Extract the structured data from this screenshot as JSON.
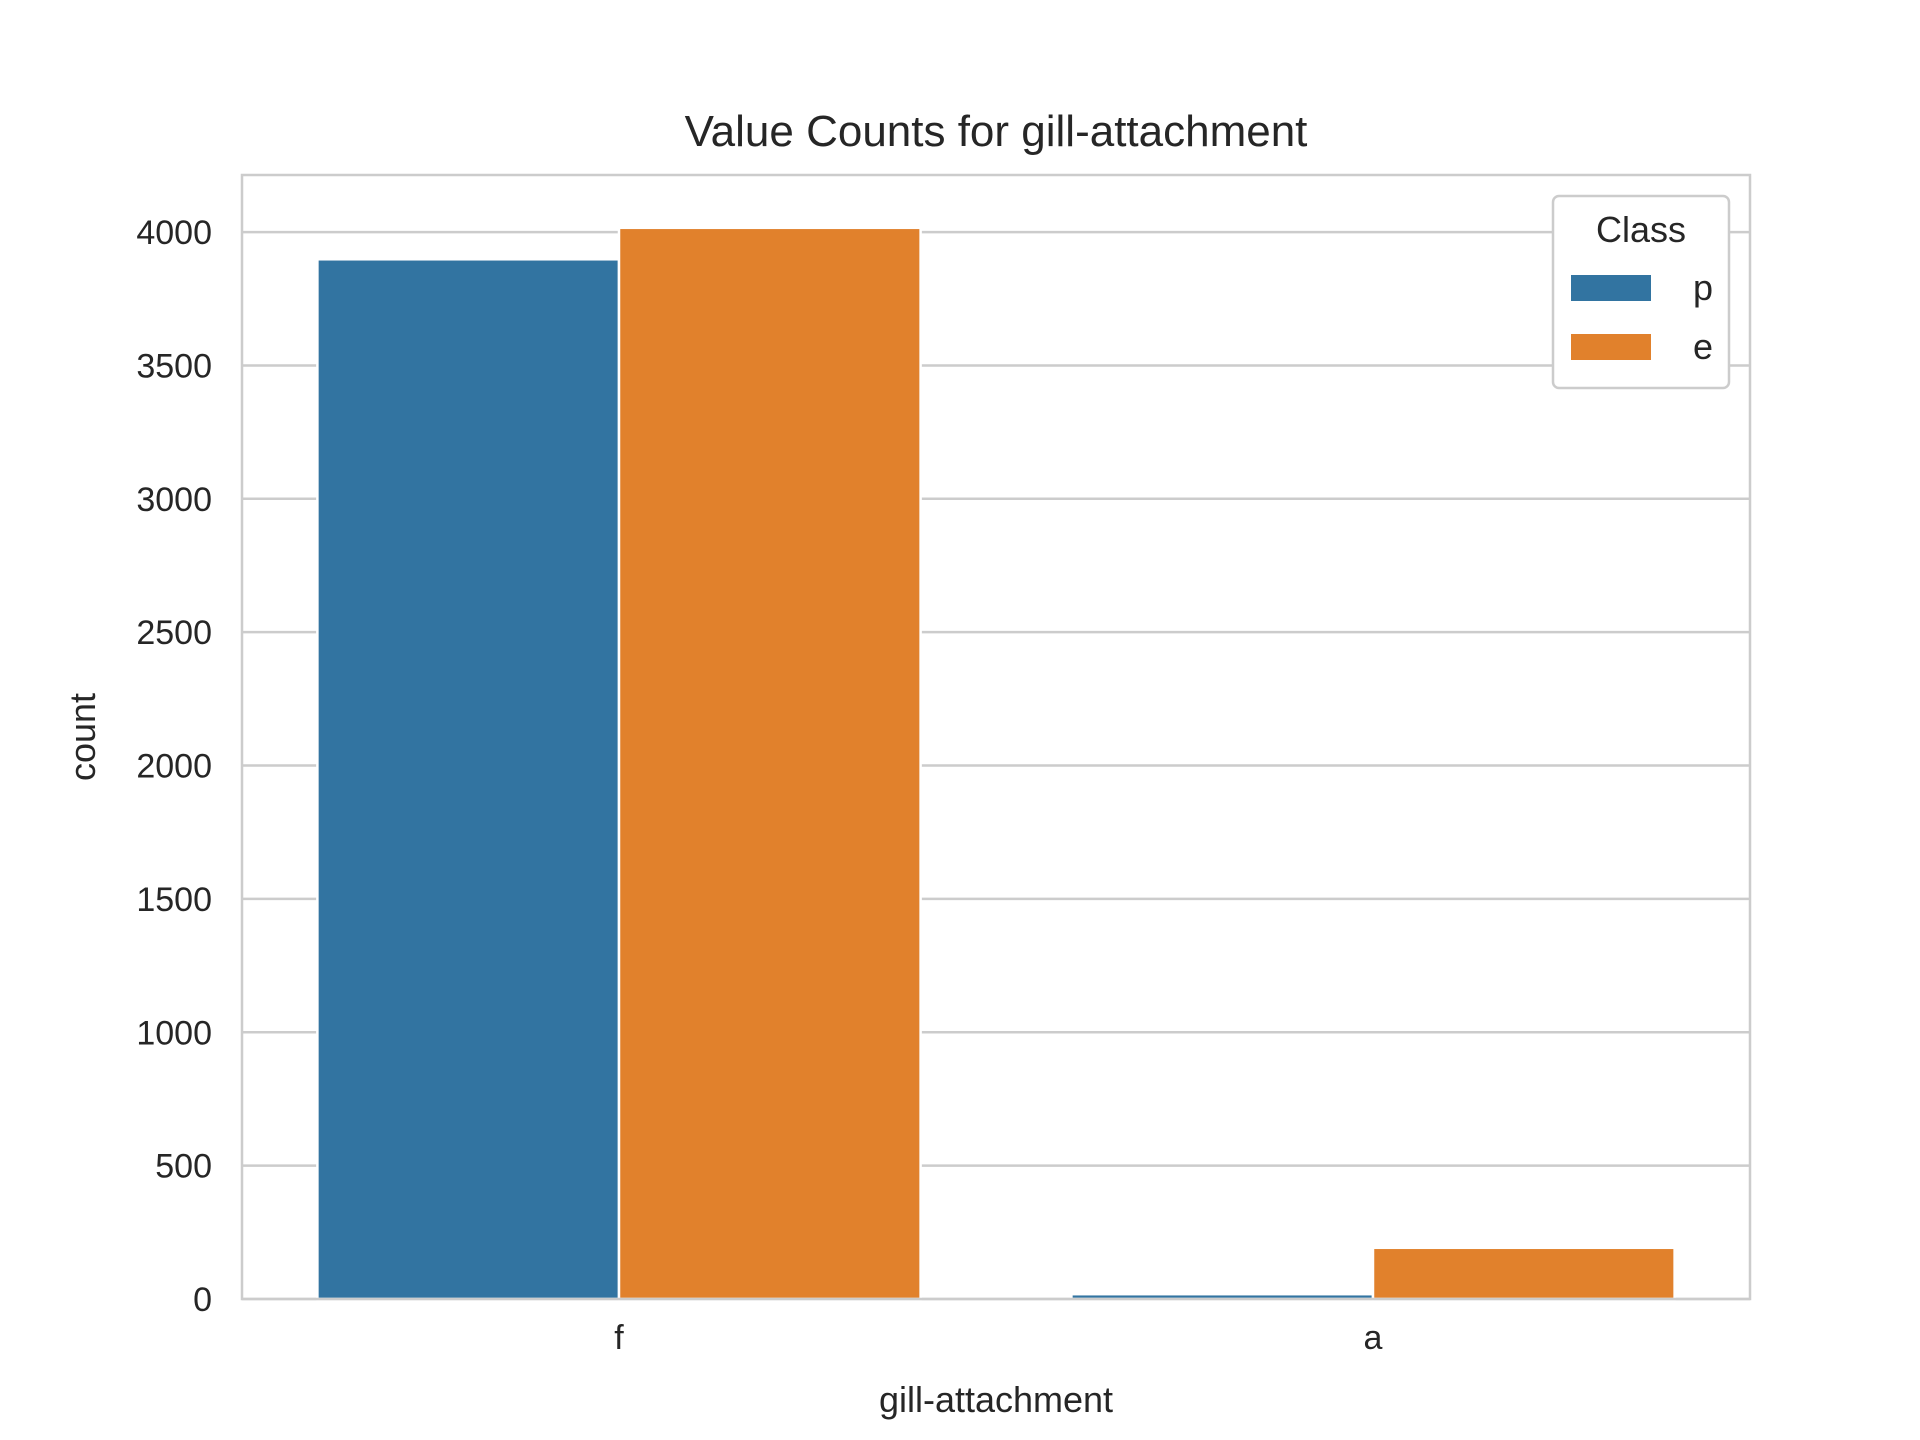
{
  "chart_data": {
    "type": "bar",
    "title": "Value Counts for gill-attachment",
    "xlabel": "gill-attachment",
    "ylabel": "count",
    "categories": [
      "f",
      "a"
    ],
    "series": [
      {
        "name": "p",
        "values": [
          3898,
          18
        ],
        "color": "#3274a1"
      },
      {
        "name": "e",
        "values": [
          4016,
          192
        ],
        "color": "#e1812c"
      }
    ],
    "ylim": [
      0,
      4214
    ],
    "yticks": [
      0,
      500,
      1000,
      1500,
      2000,
      2500,
      3000,
      3500,
      4000
    ],
    "grid": true,
    "legend": {
      "title": "Class",
      "placement": "top-right"
    }
  }
}
